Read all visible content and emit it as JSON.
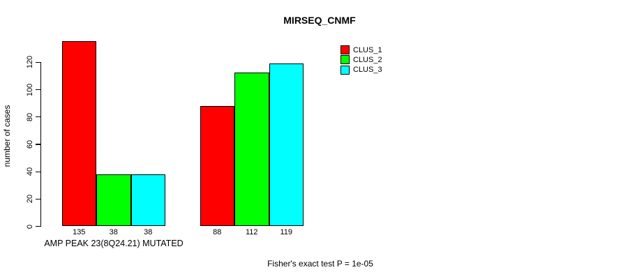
{
  "chart_data": {
    "type": "bar",
    "title": "MIRSEQ_CNMF",
    "ylabel": "number of cases",
    "xlabel": "AMP PEAK 23(8Q24.21) MUTATED",
    "footnote": "Fisher's exact test P = 1e-05",
    "yticks": [
      0,
      20,
      40,
      60,
      80,
      100,
      120
    ],
    "ylim": [
      0,
      120
    ],
    "grid": false,
    "legend_position": "top-right",
    "series": [
      {
        "name": "CLUS_1",
        "color": "#FF0000",
        "values": [
          135,
          88
        ]
      },
      {
        "name": "CLUS_2",
        "color": "#00FF00",
        "values": [
          38,
          112
        ]
      },
      {
        "name": "CLUS_3",
        "color": "#00FFFF",
        "values": [
          38,
          119
        ]
      }
    ],
    "groups": [
      {
        "bars": [
          135,
          38,
          38
        ],
        "bar_labels": [
          "135",
          "38",
          "38"
        ]
      },
      {
        "bars": [
          88,
          112,
          119
        ],
        "bar_labels": [
          "88",
          "112",
          "119"
        ]
      }
    ]
  }
}
